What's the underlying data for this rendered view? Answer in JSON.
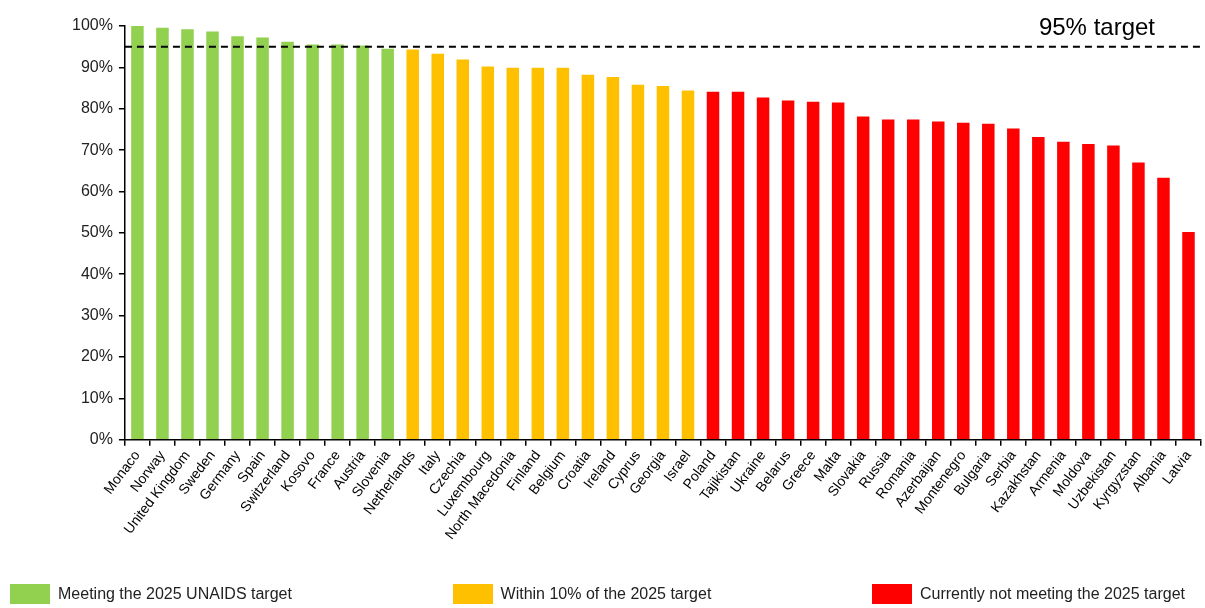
{
  "chart_data": {
    "type": "bar",
    "categories": [
      "Monaco",
      "Norway",
      "United Kingdom",
      "Sweden",
      "Germany",
      "Spain",
      "Switzerland",
      "Kosovo",
      "France",
      "Austria",
      "Slovenia",
      "Netherlands",
      "Italy",
      "Czechia",
      "Luxembourg",
      "North Macedonia",
      "Finland",
      "Belgium",
      "Croatia",
      "Ireland",
      "Cyprus",
      "Georgia",
      "Israel",
      "Poland",
      "Tajikistan",
      "Ukraine",
      "Belarus",
      "Greece",
      "Malta",
      "Slovakia",
      "Russia",
      "Romania",
      "Azerbaijan",
      "Montenegro",
      "Bulgaria",
      "Serbia",
      "Kazakhstan",
      "Armenia",
      "Moldova",
      "Uzbekistan",
      "Kyrgyzstan",
      "Albania",
      "Latvia"
    ],
    "series": [
      {
        "name": "Meeting the 2025 UNAIDS target",
        "color": "#92d050",
        "values": [
          100,
          99.6,
          99.2,
          98.7,
          97.5,
          97.2,
          96.2,
          95.5,
          95.5,
          95.3,
          94.5,
          null,
          null,
          null,
          null,
          null,
          null,
          null,
          null,
          null,
          null,
          null,
          null,
          null,
          null,
          null,
          null,
          null,
          null,
          null,
          null,
          null,
          null,
          null,
          null,
          null,
          null,
          null,
          null,
          null,
          null,
          null,
          null
        ]
      },
      {
        "name": "Within 10% of the 2025 target",
        "color": "#ffc000",
        "values": [
          null,
          null,
          null,
          null,
          null,
          null,
          null,
          null,
          null,
          null,
          null,
          94.3,
          93.3,
          91.9,
          90.2,
          89.9,
          89.9,
          89.9,
          88.2,
          87.7,
          85.8,
          85.5,
          84.4,
          null,
          null,
          null,
          null,
          null,
          null,
          null,
          null,
          null,
          null,
          null,
          null,
          null,
          null,
          null,
          null,
          null,
          null,
          null,
          null
        ]
      },
      {
        "name": "Currently not meeting the 2025 target",
        "color": "#ff0000",
        "values": [
          null,
          null,
          null,
          null,
          null,
          null,
          null,
          null,
          null,
          null,
          null,
          null,
          null,
          null,
          null,
          null,
          null,
          null,
          null,
          null,
          null,
          null,
          null,
          84.1,
          84.1,
          82.7,
          82.0,
          81.7,
          81.5,
          78.1,
          77.4,
          77.4,
          76.9,
          76.6,
          76.4,
          75.2,
          73.2,
          72.0,
          71.5,
          71.1,
          67.0,
          63.3,
          50.2
        ]
      }
    ],
    "ylim": [
      0,
      100
    ],
    "yticks": [
      {
        "value": 0,
        "label": "0%"
      },
      {
        "value": 10,
        "label": "10%"
      },
      {
        "value": 20,
        "label": "20%"
      },
      {
        "value": 30,
        "label": "30%"
      },
      {
        "value": 40,
        "label": "40%"
      },
      {
        "value": 50,
        "label": "50%"
      },
      {
        "value": 60,
        "label": "60%"
      },
      {
        "value": 70,
        "label": "70%"
      },
      {
        "value": 80,
        "label": "80%"
      },
      {
        "value": 90,
        "label": "90%"
      },
      {
        "value": 100,
        "label": "100%"
      }
    ],
    "ref_lines": [
      {
        "axis": "y",
        "value": 95,
        "label": "95% target",
        "color": "#000000",
        "line_style": "dashed"
      }
    ],
    "legend": "bottom"
  }
}
